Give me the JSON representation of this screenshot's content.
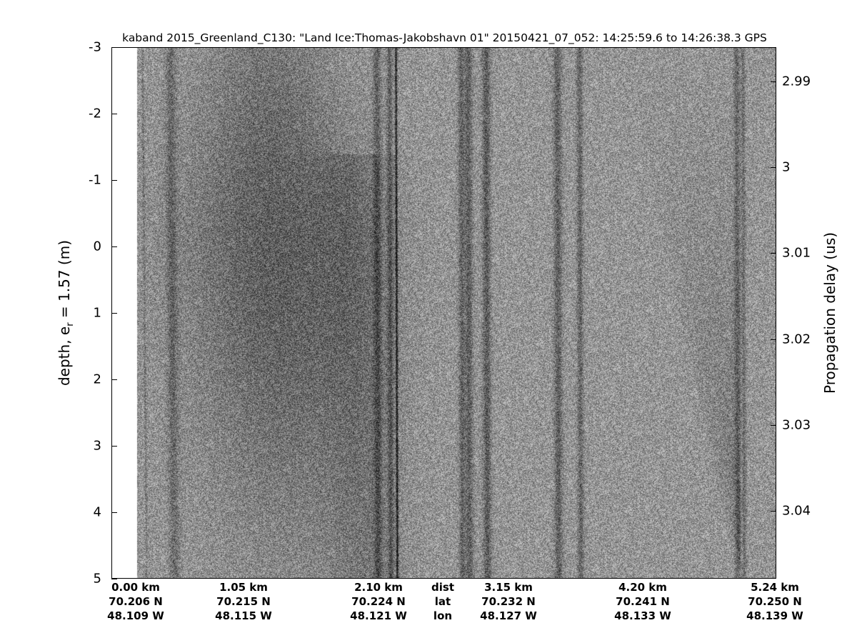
{
  "title": "kaband 2015_Greenland_C130: \"Land Ice:Thomas-Jakobshavn 01\"  20150421_07_052: 14:25:59.6 to 14:26:38.3 GPS",
  "chart_data": {
    "type": "heatmap",
    "colormap": "gray",
    "title": "kaband 2015_Greenland_C130: \"Land Ice:Thomas-Jakobshavn 01\"  20150421_07_052: 14:25:59.6 to 14:26:38.3 GPS",
    "ylabel": {
      "main": "depth, e",
      "sub": "r",
      "rest": " = 1.57 (m)"
    },
    "ylim": [
      -3,
      5
    ],
    "yticks": [
      "-3",
      "-2",
      "-1",
      "0",
      "1",
      "2",
      "3",
      "4",
      "5"
    ],
    "y2label": "Propagation delay (us)",
    "y2ticks": [
      "2.99",
      "3",
      "3.01",
      "3.02",
      "3.03",
      "3.04"
    ],
    "y2tick_values": [
      2.99,
      3.0,
      3.01,
      3.02,
      3.03,
      3.04
    ],
    "y2lim": [
      2.986,
      3.0479
    ],
    "xlim_km": [
      0,
      5.24
    ],
    "x_rows": [
      "dist",
      "lat",
      "lon"
    ],
    "xticks": [
      {
        "dist": "0.00 km",
        "lat": "70.206 N",
        "lon": "48.109 W",
        "km": 0.0
      },
      {
        "dist": "1.05 km",
        "lat": "70.215 N",
        "lon": "48.115 W",
        "km": 1.05
      },
      {
        "dist": "2.10 km",
        "lat": "70.224 N",
        "lon": "48.121 W",
        "km": 2.1
      },
      {
        "dist": "3.15 km",
        "lat": "70.232 N",
        "lon": "48.127 W",
        "km": 3.15
      },
      {
        "dist": "4.20 km",
        "lat": "70.241 N",
        "lon": "48.133 W",
        "km": 4.2
      },
      {
        "dist": "5.24 km",
        "lat": "70.250 N",
        "lon": "48.139 W",
        "km": 5.24
      }
    ],
    "grid": false
  }
}
